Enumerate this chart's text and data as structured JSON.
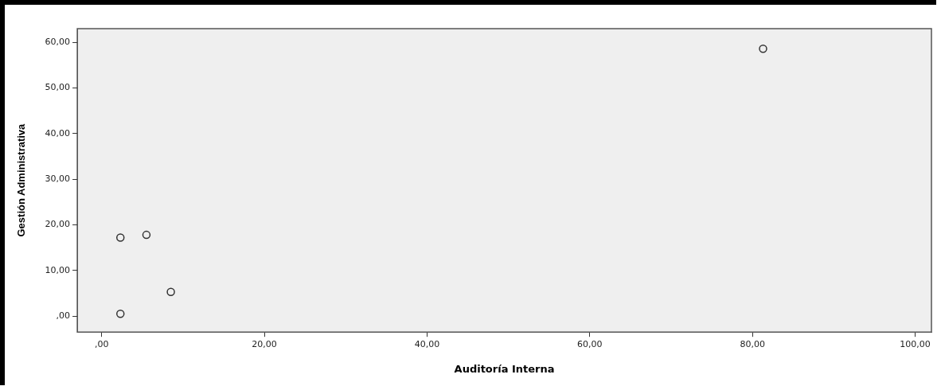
{
  "chart_data": {
    "type": "scatter",
    "xlabel": "Auditoría Interna",
    "ylabel": "Gestión Administrativa",
    "x": [
      2.3,
      5.5,
      8.5,
      2.3,
      81.3
    ],
    "values": [
      17.2,
      17.8,
      5.3,
      0.5,
      58.6
    ],
    "color": "#333333",
    "marker": "circle",
    "grid": false,
    "legend": false,
    "xlim": [
      -3,
      102
    ],
    "ylim": [
      -3.5,
      63
    ],
    "xticks": [
      {
        "value": 0,
        "label": ",00"
      },
      {
        "value": 20,
        "label": "20,00"
      },
      {
        "value": 40,
        "label": "40,00"
      },
      {
        "value": 60,
        "label": "60,00"
      },
      {
        "value": 80,
        "label": "80,00"
      },
      {
        "value": 100,
        "label": "100,00"
      }
    ],
    "yticks": [
      {
        "value": 0,
        "label": ",00"
      },
      {
        "value": 10,
        "label": "10,00"
      },
      {
        "value": 20,
        "label": "20,00"
      },
      {
        "value": 30,
        "label": "30,00"
      },
      {
        "value": 40,
        "label": "40,00"
      },
      {
        "value": 50,
        "label": "50,00"
      },
      {
        "value": 60,
        "label": "60,00"
      }
    ]
  }
}
